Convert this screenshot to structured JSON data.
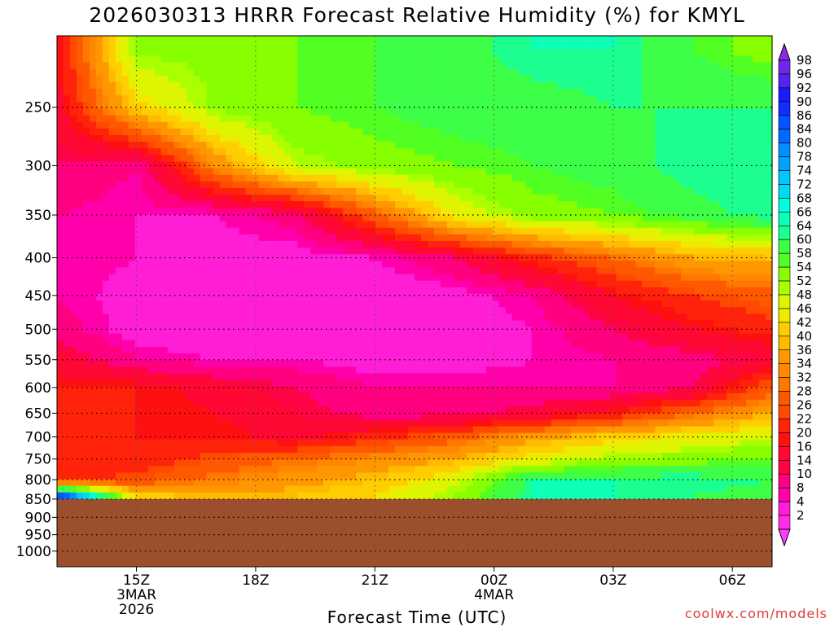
{
  "title": "2026030313 HRRR Forecast Relative Humidity (%) for KMYL",
  "credit": "coolwx.com/models",
  "colors": {
    "ground": "#9b4f2c",
    "gridline": "#000000"
  },
  "chart_data": {
    "type": "heatmap",
    "title": "2026030313 HRRR Forecast Relative Humidity (%) for KMYL",
    "xlabel": "Forecast Time (UTC)",
    "ylabel": "",
    "x_ticks": [
      {
        "hour": 15,
        "label": "15Z",
        "sub": [
          "3MAR",
          "2026"
        ]
      },
      {
        "hour": 18,
        "label": "18Z",
        "sub": []
      },
      {
        "hour": 21,
        "label": "21Z",
        "sub": []
      },
      {
        "hour": 24,
        "label": "00Z",
        "sub": [
          "4MAR"
        ]
      },
      {
        "hour": 27,
        "label": "03Z",
        "sub": []
      },
      {
        "hour": 30,
        "label": "06Z",
        "sub": []
      }
    ],
    "xlim": [
      13,
      31
    ],
    "y_scale": "log",
    "y_ticks": [
      250,
      300,
      350,
      400,
      450,
      500,
      550,
      600,
      650,
      700,
      750,
      800,
      850,
      900,
      950,
      1000
    ],
    "ylim": [
      200,
      1050
    ],
    "surface_pressure": 850,
    "colorbar": {
      "levels": [
        2,
        4,
        8,
        10,
        14,
        16,
        20,
        22,
        26,
        28,
        32,
        34,
        36,
        40,
        42,
        46,
        48,
        52,
        54,
        58,
        60,
        64,
        66,
        68,
        72,
        74,
        78,
        80,
        84,
        86,
        90,
        92,
        96,
        98
      ]
    },
    "rh_profiles": {
      "pressure_levels": [
        210,
        250,
        300,
        350,
        400,
        450,
        500,
        550,
        600,
        650,
        700,
        750,
        800,
        840
      ],
      "times": [
        13,
        15,
        17,
        19,
        21,
        23,
        25,
        27,
        29,
        31
      ],
      "rh": [
        [
          20,
          55,
          55,
          58,
          60,
          62,
          66,
          66,
          60,
          56
        ],
        [
          18,
          44,
          55,
          58,
          60,
          62,
          62,
          64,
          64,
          64
        ],
        [
          14,
          10,
          36,
          52,
          56,
          58,
          60,
          62,
          66,
          66
        ],
        [
          10,
          8,
          8,
          12,
          30,
          48,
          56,
          58,
          62,
          66
        ],
        [
          10,
          8,
          6,
          6,
          8,
          14,
          24,
          32,
          40,
          42
        ],
        [
          10,
          6,
          4,
          4,
          4,
          6,
          10,
          20,
          26,
          30
        ],
        [
          12,
          6,
          4,
          4,
          4,
          6,
          8,
          14,
          20,
          24
        ],
        [
          18,
          10,
          8,
          8,
          6,
          6,
          8,
          10,
          12,
          16
        ],
        [
          22,
          22,
          18,
          14,
          10,
          10,
          10,
          10,
          14,
          30
        ],
        [
          22,
          22,
          20,
          16,
          12,
          12,
          16,
          22,
          32,
          40
        ],
        [
          22,
          22,
          22,
          18,
          24,
          30,
          38,
          44,
          48,
          52
        ],
        [
          22,
          22,
          28,
          32,
          36,
          40,
          48,
          54,
          56,
          58
        ],
        [
          24,
          28,
          34,
          38,
          42,
          50,
          66,
          66,
          66,
          64
        ],
        [
          90,
          44,
          40,
          42,
          46,
          54,
          66,
          66,
          64,
          62
        ]
      ]
    }
  }
}
